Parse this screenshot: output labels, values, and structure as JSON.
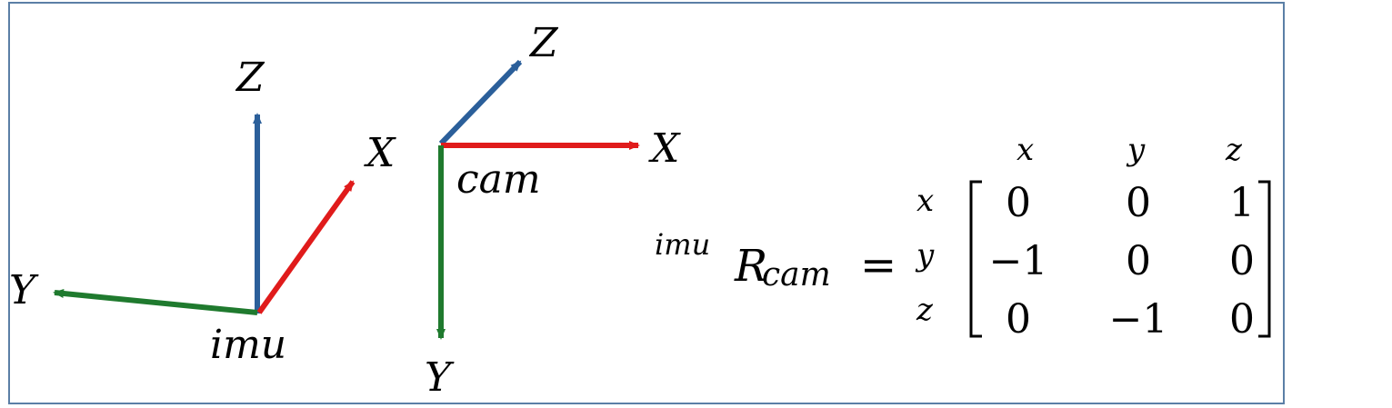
{
  "colors": {
    "x_axis": "#e01b1b",
    "y_axis": "#1f7a2e",
    "z_axis": "#2b5f9a",
    "border": "#5b7fa6"
  },
  "imu_frame": {
    "origin_label": "imu",
    "axes": {
      "x": "X",
      "y": "Y",
      "z": "Z"
    }
  },
  "cam_frame": {
    "origin_label": "cam",
    "axes": {
      "x": "X",
      "y": "Y",
      "z": "Z"
    }
  },
  "equation": {
    "superscript": "imu",
    "symbol": "R",
    "subscript": "cam",
    "equals": "=",
    "column_labels": [
      "x",
      "y",
      "z"
    ],
    "row_labels": [
      "x",
      "y",
      "z"
    ],
    "matrix": [
      [
        "0",
        "0",
        "1"
      ],
      [
        "−1",
        "0",
        "0"
      ],
      [
        "0",
        "−1",
        "0"
      ]
    ]
  }
}
